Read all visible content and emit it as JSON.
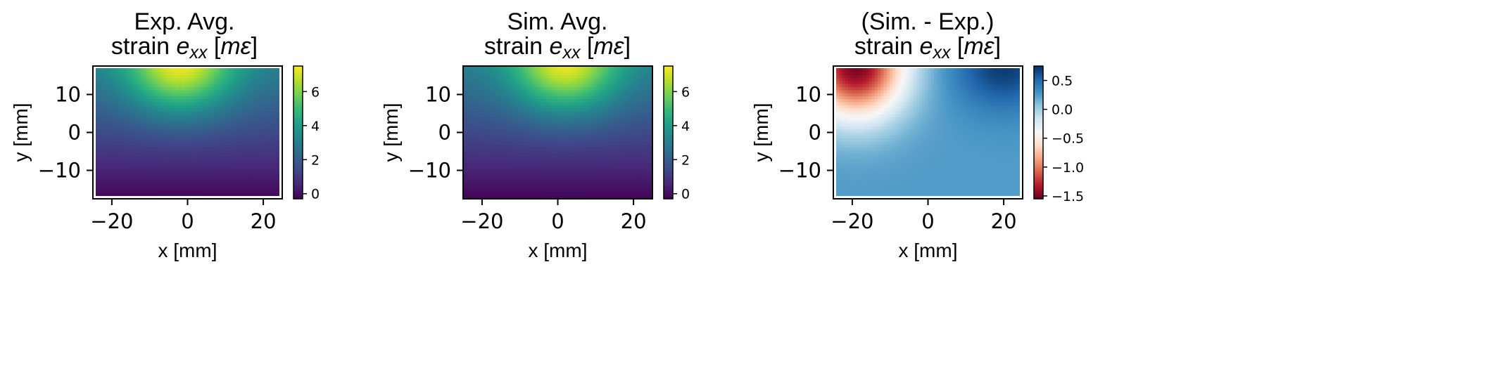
{
  "chart_data": [
    {
      "type": "heatmap",
      "title_line1": "Exp. Avg.",
      "title_line2": "strain e",
      "title_sub": "xx",
      "title_unit": "[mε]",
      "xlabel": "x [mm]",
      "ylabel": "y [mm]",
      "xlim": [
        -25,
        25
      ],
      "ylim": [
        -17.5,
        17.5
      ],
      "xticks": [
        -20,
        0,
        20
      ],
      "xtick_labels": [
        "−20",
        "0",
        "20"
      ],
      "yticks": [
        -10,
        0,
        10
      ],
      "ytick_labels": [
        "−10",
        "0",
        "10"
      ],
      "colormap": "viridis",
      "clim": [
        -0.3,
        7.5
      ],
      "colorbar_ticks": [
        0,
        2,
        4,
        6
      ],
      "colorbar_tick_labels": [
        "0",
        "2",
        "4",
        "6"
      ],
      "field": {
        "kind": "strain",
        "peak_top": 7.4,
        "x_center": -2,
        "bottom_value": -0.2
      }
    },
    {
      "type": "heatmap",
      "title_line1": "Sim. Avg.",
      "title_line2": "strain e",
      "title_sub": "xx",
      "title_unit": "[mε]",
      "xlabel": "x [mm]",
      "ylabel": "y [mm]",
      "xlim": [
        -25,
        25
      ],
      "ylim": [
        -17.5,
        17.5
      ],
      "xticks": [
        -20,
        0,
        20
      ],
      "xtick_labels": [
        "−20",
        "0",
        "20"
      ],
      "yticks": [
        -10,
        0,
        10
      ],
      "ytick_labels": [
        "−10",
        "0",
        "10"
      ],
      "colormap": "viridis",
      "clim": [
        -0.3,
        7.5
      ],
      "colorbar_ticks": [
        0,
        2,
        4,
        6
      ],
      "colorbar_tick_labels": [
        "0",
        "2",
        "4",
        "6"
      ],
      "field": {
        "kind": "strain",
        "peak_top": 7.3,
        "x_center": 2,
        "bottom_value": -0.2
      }
    },
    {
      "type": "heatmap",
      "title_line1": "(Sim. - Exp.)",
      "title_line2": "strain e",
      "title_sub": "xx",
      "title_unit": "[mε]",
      "xlabel": "x [mm]",
      "ylabel": "y [mm]",
      "xlim": [
        -25,
        25
      ],
      "ylim": [
        -17.5,
        17.5
      ],
      "xticks": [
        -20,
        0,
        20
      ],
      "xtick_labels": [
        "−20",
        "0",
        "20"
      ],
      "yticks": [
        -10,
        0,
        10
      ],
      "ytick_labels": [
        "−10",
        "0",
        "10"
      ],
      "colormap": "RdBu",
      "clim": [
        -1.55,
        0.75
      ],
      "colorbar_ticks": [
        0.5,
        0.0,
        -0.5,
        -1.0,
        -1.5
      ],
      "colorbar_tick_labels": [
        "0.5",
        "0.0",
        "−0.5",
        "−1.0",
        "−1.5"
      ],
      "field": {
        "kind": "difference",
        "min_top_left": -1.5,
        "max_top_right": 0.7,
        "background": 0.25
      }
    }
  ]
}
